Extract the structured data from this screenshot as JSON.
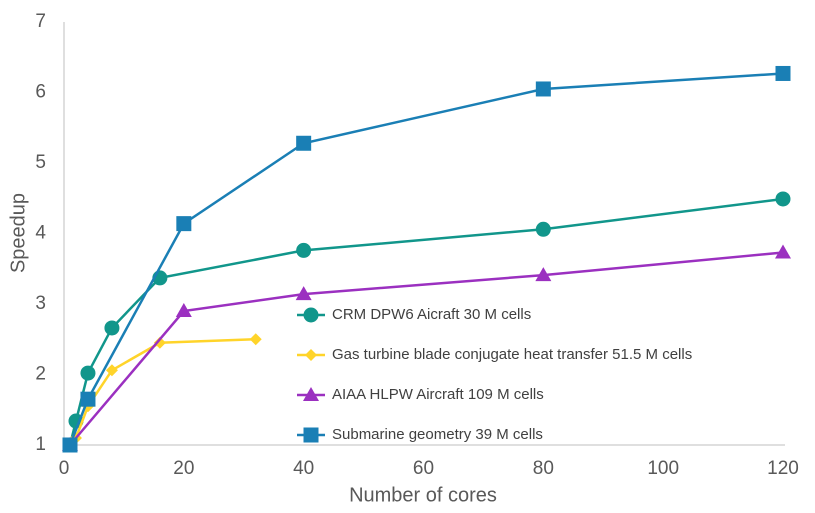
{
  "chart_data": {
    "type": "line",
    "xlabel": "Number of cores",
    "ylabel": "Speedup",
    "xlim": [
      0,
      120
    ],
    "xticks": [
      0,
      20,
      40,
      60,
      80,
      100,
      120
    ],
    "ylim": [
      1,
      7
    ],
    "yticks": [
      1,
      2,
      3,
      4,
      5,
      6,
      7
    ],
    "grid": false,
    "legend": "lower right",
    "series": [
      {
        "name": "CRM DPW6 Aicraft 30 M cells",
        "color": "#11968b",
        "marker": "circle",
        "x": [
          1,
          2,
          4,
          8,
          16,
          40,
          80,
          120
        ],
        "values": [
          1,
          1.34,
          2.02,
          2.66,
          3.37,
          3.76,
          4.06,
          4.49
        ]
      },
      {
        "name": "Gas turbine blade conjugate heat transfer 51.5 M cells",
        "color": "#ffd42a",
        "marker": "diamond",
        "x": [
          1,
          2,
          4,
          8,
          16,
          32
        ],
        "values": [
          1,
          1.1,
          1.55,
          2.06,
          2.45,
          2.5
        ]
      },
      {
        "name": "AIAA HLPW Aircraft 109 M cells",
        "color": "#9b30c0",
        "marker": "triangle",
        "x": [
          1,
          20,
          40,
          80,
          120
        ],
        "values": [
          1,
          2.9,
          3.14,
          3.41,
          3.73
        ]
      },
      {
        "name": "Submarine geometry 39 M cells",
        "color": "#1a7fb5",
        "marker": "square",
        "x": [
          1,
          4,
          20,
          40,
          80,
          120
        ],
        "values": [
          1,
          1.65,
          4.14,
          5.28,
          6.05,
          6.27
        ]
      }
    ]
  }
}
